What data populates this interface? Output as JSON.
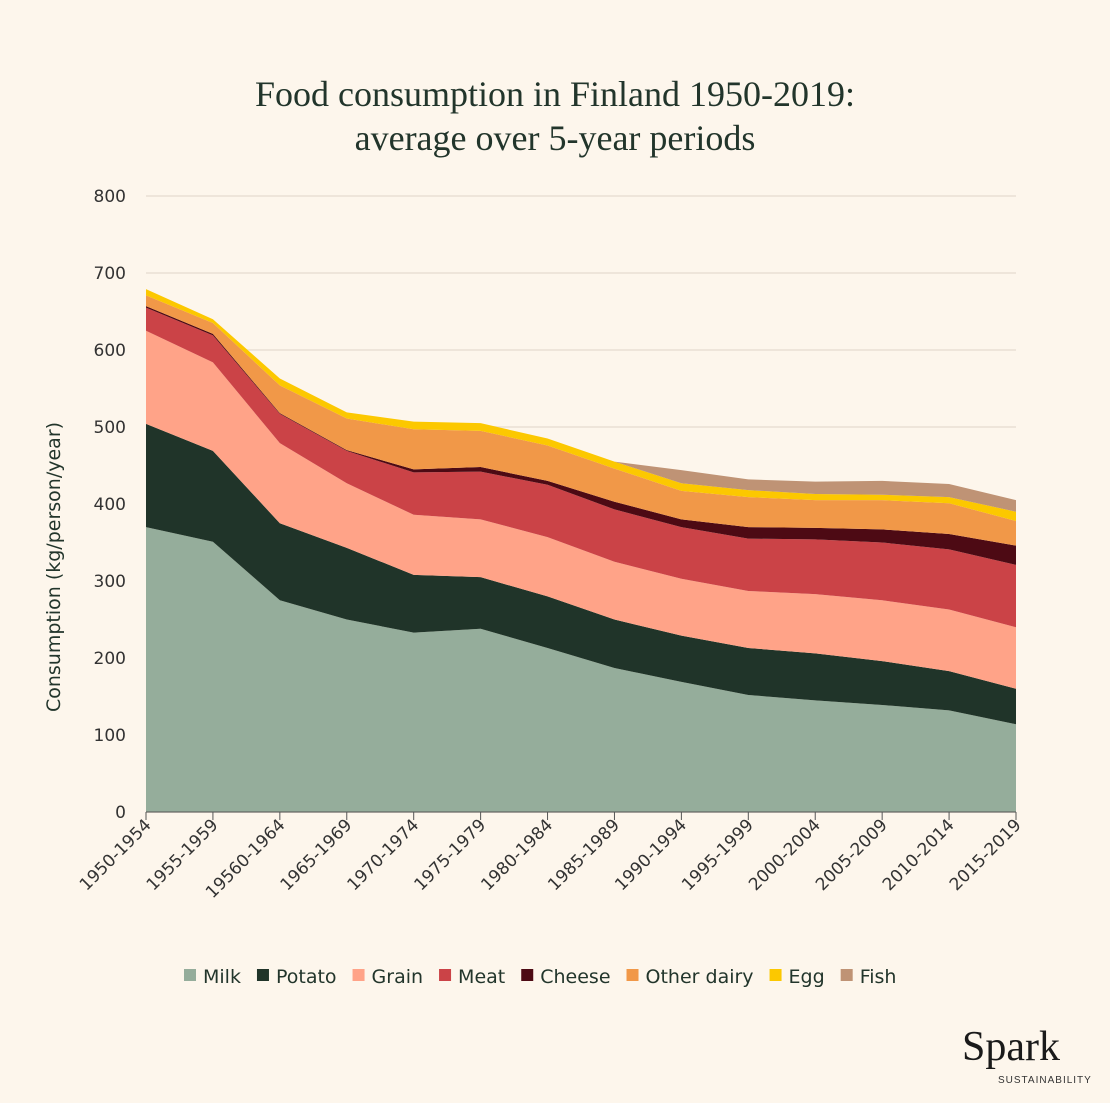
{
  "chart_data": {
    "type": "area",
    "stacked": true,
    "title_line1": "Food consumption in Finland 1950-2019:",
    "title_line2": "average over 5-year periods",
    "xlabel": "",
    "ylabel": "Consumption (kg/person/year)",
    "ylim": [
      0,
      800
    ],
    "yticks": [
      0,
      100,
      200,
      300,
      400,
      500,
      600,
      700,
      800
    ],
    "grid": true,
    "legend_position": "bottom",
    "categories": [
      "1950-1954",
      "1955-1959",
      "19560-1964",
      "1965-1969",
      "1970-1974",
      "1975-1979",
      "1980-1984",
      "1985-1989",
      "1990-1994",
      "1995-1999",
      "2000-2004",
      "2005-2009",
      "2010-2014",
      "2015-2019"
    ],
    "series": [
      {
        "name": "Milk",
        "color": "#95ad9b",
        "values": [
          370,
          351,
          275,
          250,
          233,
          238,
          213,
          187,
          169,
          152,
          145,
          139,
          132,
          114
        ]
      },
      {
        "name": "Potato",
        "color": "#203429",
        "values": [
          134,
          118,
          100,
          93,
          75,
          67,
          67,
          63,
          60,
          61,
          61,
          57,
          51,
          46
        ]
      },
      {
        "name": "Grain",
        "color": "#ffa388",
        "values": [
          121,
          115,
          104,
          84,
          78,
          75,
          77,
          75,
          74,
          74,
          77,
          79,
          80,
          80
        ]
      },
      {
        "name": "Meat",
        "color": "#cb4347",
        "values": [
          30,
          35,
          38,
          42,
          55,
          62,
          68,
          68,
          67,
          68,
          71,
          75,
          78,
          81
        ]
      },
      {
        "name": "Cheese",
        "color": "#4d0a14",
        "values": [
          2,
          2,
          1,
          1,
          4,
          6,
          5,
          10,
          10,
          15,
          15,
          17,
          20,
          25
        ]
      },
      {
        "name": "Other dairy",
        "color": "#f19848",
        "values": [
          14,
          14,
          36,
          41,
          52,
          47,
          46,
          43,
          37,
          39,
          36,
          38,
          40,
          32
        ]
      },
      {
        "name": "Egg",
        "color": "#fcc800",
        "values": [
          8,
          5,
          9,
          8,
          10,
          10,
          9,
          9,
          10,
          9,
          8,
          7,
          8,
          12
        ]
      },
      {
        "name": "Fish",
        "color": "#bf9375",
        "values": [
          0,
          0,
          0,
          0,
          0,
          0,
          0,
          0,
          17,
          14,
          16,
          18,
          17,
          15
        ]
      }
    ]
  },
  "logo": {
    "name": "Spark",
    "sub": "SUSTAINABILITY"
  }
}
